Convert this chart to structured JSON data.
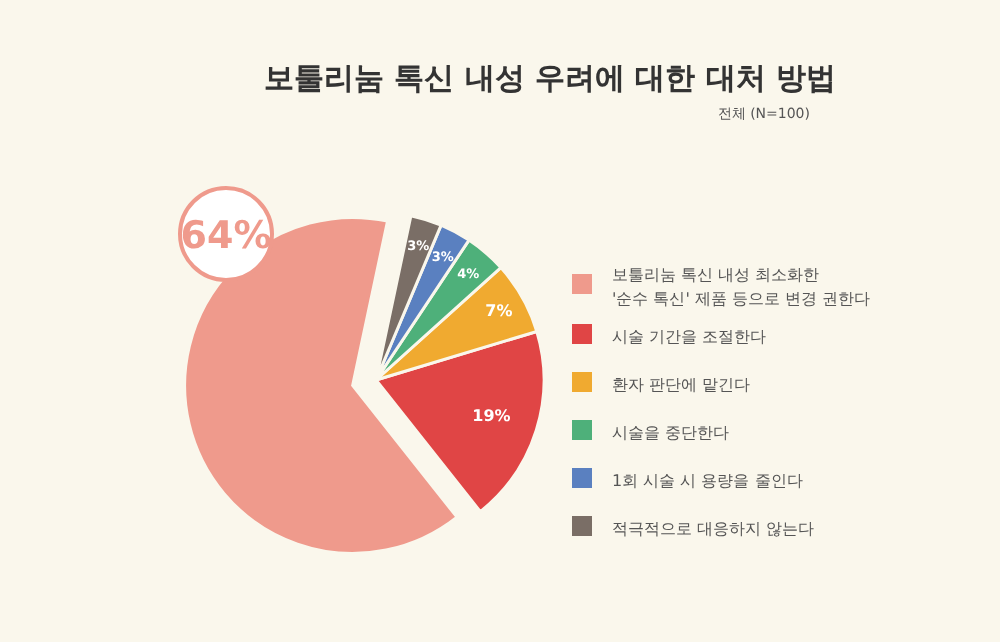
{
  "chart_data": {
    "type": "pie",
    "title": "보툴리눔 톡신 내성 우려에 대한 대처 방법",
    "subtitle": "전체 (N=100)",
    "categories": [
      "보툴리눔 톡신 내성 최소화한\n'순수 톡신' 제품 등으로 변경 권한다",
      "시술 기간을 조절한다",
      "환자 판단에 맡긴다",
      "시술을 중단한다",
      "1회 시술 시 용량을 줄인다",
      "적극적으로 대응하지 않는다"
    ],
    "values": [
      64,
      19,
      7,
      4,
      3,
      3
    ],
    "colors": [
      "#ef9a8c",
      "#e04545",
      "#f0aa30",
      "#4eb07a",
      "#5a80c0",
      "#7a6e66"
    ],
    "value_labels": [
      "64%",
      "19%",
      "7%",
      "4%",
      "3%",
      "3%"
    ],
    "legend": "right"
  }
}
